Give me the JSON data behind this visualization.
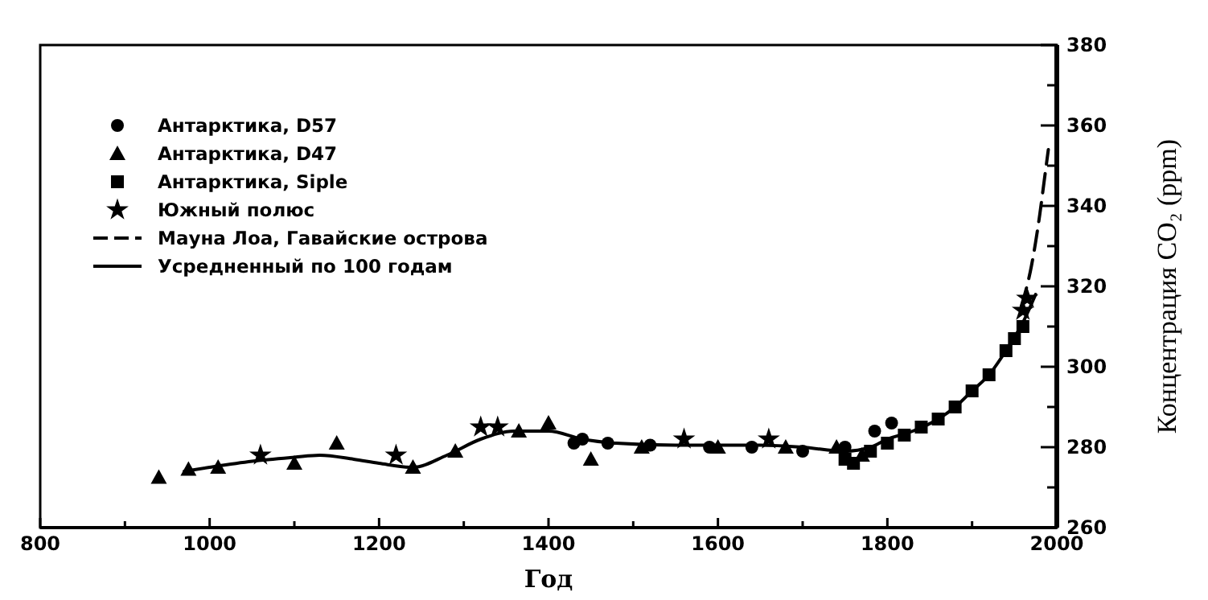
{
  "chart_data": {
    "type": "scatter",
    "xlabel": "Год",
    "ylabel": "Концентрация CO₂ (ppm)",
    "xlim": [
      800,
      2000
    ],
    "ylim": [
      260,
      380
    ],
    "xticks": [
      800,
      {
        "value": 900,
        "label": null
      },
      1000,
      {
        "value": 1100,
        "label": null
      },
      1200,
      {
        "value": 1300,
        "label": null
      },
      1400,
      {
        "value": 1500,
        "label": null
      },
      1600,
      {
        "value": 1700,
        "label": null
      },
      1800,
      {
        "value": 1900,
        "label": null
      },
      2000
    ],
    "yticks": [
      260,
      {
        "value": 270,
        "label": null
      },
      280,
      {
        "value": 290,
        "label": null
      },
      300,
      {
        "value": 310,
        "label": null
      },
      320,
      {
        "value": 330,
        "label": null
      },
      340,
      {
        "value": 350,
        "label": null
      },
      360,
      {
        "value": 370,
        "label": null
      },
      380
    ],
    "legend": "top left",
    "grid": false,
    "series": [
      {
        "name": "Антарктика, D57",
        "marker": "circle",
        "color": "#000000",
        "x": [
          1430,
          1440,
          1470,
          1520,
          1590,
          1640,
          1700,
          1750,
          1785,
          1805
        ],
        "values": [
          281,
          282,
          281,
          280.5,
          280,
          280,
          279,
          280,
          284,
          286
        ]
      },
      {
        "name": "Антарктика, D47",
        "marker": "triangle",
        "color": "#000000",
        "x": [
          940,
          975,
          1010,
          1100,
          1150,
          1240,
          1290,
          1365,
          1400,
          1450,
          1510,
          1600,
          1680,
          1740,
          1770
        ],
        "values": [
          272.5,
          274.5,
          275,
          276,
          281,
          275,
          279,
          284,
          286,
          277,
          280,
          280,
          280,
          280,
          278
        ]
      },
      {
        "name": "Антарктика, Siple",
        "marker": "square",
        "color": "#000000",
        "x": [
          1750,
          1760,
          1780,
          1800,
          1820,
          1840,
          1860,
          1880,
          1900,
          1920,
          1940,
          1950,
          1960
        ],
        "values": [
          277,
          276,
          279,
          281,
          283,
          285,
          287,
          290,
          294,
          298,
          304,
          307,
          310
        ]
      },
      {
        "name": "Южный полюс",
        "marker": "star",
        "color": "#000000",
        "x": [
          1060,
          1220,
          1320,
          1340,
          1560,
          1660,
          1960,
          1965
        ],
        "values": [
          278,
          278,
          285,
          285,
          282,
          282,
          314,
          317
        ]
      },
      {
        "name": "Мауна Лоа, Гавайские острова",
        "type": "line",
        "marker": "none",
        "line_style": "dashed",
        "color": "#000000",
        "x": [
          1958,
          1970,
          1975,
          1980,
          1985,
          1990
        ],
        "values": [
          315,
          325,
          331,
          338,
          346,
          354
        ]
      },
      {
        "name": "Усредненный по 100 годам",
        "type": "line",
        "marker": "none",
        "line_style": "solid",
        "color": "#000000",
        "x": [
          970,
          1000,
          1050,
          1100,
          1130,
          1170,
          1200,
          1240,
          1280,
          1320,
          1360,
          1400,
          1440,
          1480,
          1550,
          1650,
          1700,
          1750,
          1780,
          1800,
          1830,
          1860,
          1880,
          1900,
          1920,
          1940,
          1960,
          1975
        ],
        "values": [
          274,
          275,
          276.5,
          277.5,
          278,
          277,
          276,
          275,
          278,
          282,
          284,
          284,
          282,
          281,
          280.5,
          280.5,
          280,
          279,
          280,
          282,
          284,
          287,
          290,
          294,
          298,
          304,
          311,
          318
        ]
      }
    ]
  }
}
